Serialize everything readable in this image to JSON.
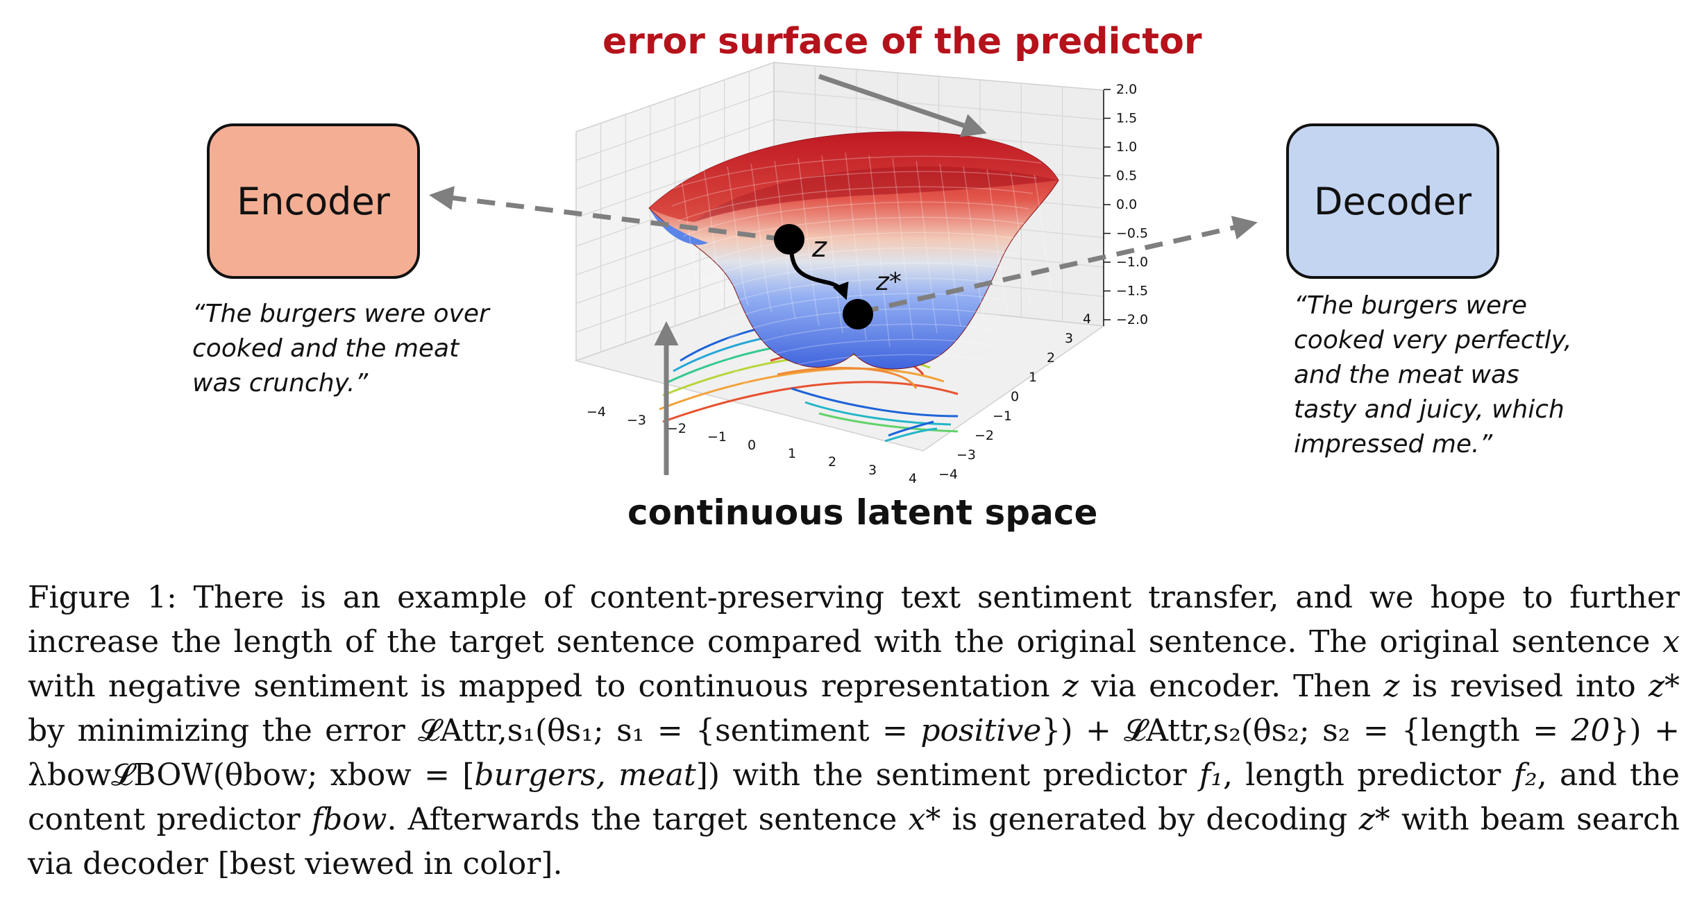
{
  "title": "error surface of the predictor",
  "bottom_label": "continuous latent space",
  "encoder": {
    "label": "Encoder",
    "quote": [
      "“The burgers were over",
      "cooked and the meat",
      "was crunchy.”"
    ]
  },
  "decoder": {
    "label": "Decoder",
    "quote": [
      "“The burgers were",
      "cooked very perfectly,",
      "and the meat was",
      "tasty and juicy, which",
      "impressed me.”"
    ]
  },
  "points": {
    "z": "z",
    "z_star": "z*"
  },
  "axes": {
    "x_ticks": [
      "−4",
      "−3",
      "−2",
      "−1",
      "0",
      "1",
      "2",
      "3",
      "4"
    ],
    "y_ticks": [
      "−4",
      "−3",
      "−2",
      "−1",
      "0",
      "1",
      "2",
      "3",
      "4"
    ],
    "z_ticks": [
      "2.0",
      "1.5",
      "1.0",
      "0.5",
      "0.0",
      "−0.5",
      "−1.0",
      "−1.5",
      "−2.0"
    ]
  },
  "colors": {
    "title": "#b5121b",
    "encoder_fill": "#f4ae94",
    "decoder_fill": "#c4d5f1",
    "arrow": "#7f7f7f",
    "surface_high": "#c8202c",
    "surface_low": "#4a6fe3"
  },
  "caption": {
    "lead": "Figure 1: There is an example of content-preserving text sentiment transfer, and we hope to further increase the length of the target sentence compared with the original sentence. The original sentence ",
    "var_x": "x",
    "t1": " with negative sentiment is mapped to continuous representation ",
    "var_z1": "z",
    "t2": " via encoder. Then ",
    "var_z2": "z",
    "t3": " is revised into ",
    "var_zstar": "z*",
    "t4": " by minimizing the error ",
    "formula1": "𝓛Attr,s₁(θs₁; s₁ = {sentiment = ",
    "positive": "positive",
    "formula2": "}) + 𝓛Attr,s₂(θs₂; s₂ = {length = ",
    "twenty": "20",
    "formula3": "}) + λbow𝓛BOW(θbow; xbow = [",
    "bow": "burgers, meat",
    "formula4": "])",
    "t5": " with the sentiment predictor ",
    "f1": "f₁",
    "t6": ", length predictor ",
    "f2": "f₂",
    "t7": ", and the content predictor ",
    "fbow": "fbow",
    "t8": ". Afterwards the target sentence ",
    "var_xstar": "x*",
    "t9": " is generated by decoding ",
    "var_zstar2": "z*",
    "t10": " with beam search via decoder [best viewed in color]."
  }
}
